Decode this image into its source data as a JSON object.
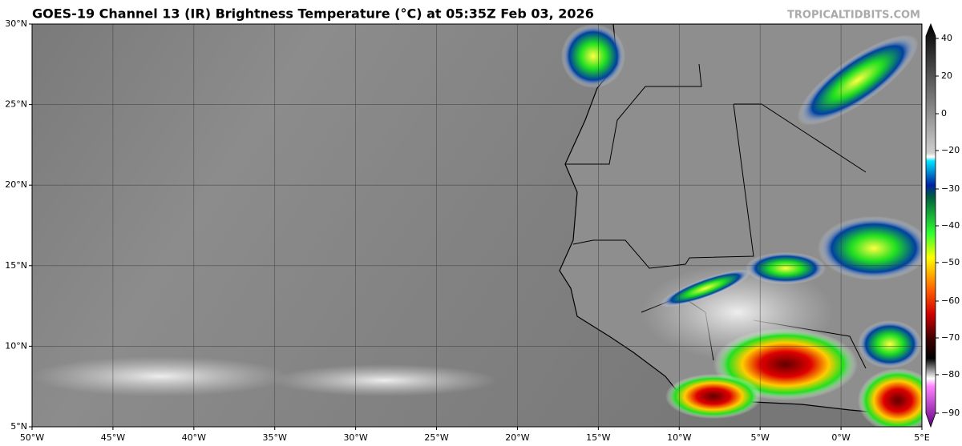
{
  "header": {
    "title": "GOES-19 Channel 13 (IR) Brightness Temperature (°C) at 05:35Z Feb 03, 2026",
    "watermark": "TROPICALTIDBITS.COM"
  },
  "map": {
    "lat_labels": [
      "30°N",
      "25°N",
      "20°N",
      "15°N",
      "10°N",
      "5°N"
    ],
    "lon_labels": [
      "50°W",
      "45°W",
      "40°W",
      "35°W",
      "30°W",
      "25°W",
      "20°W",
      "15°W",
      "10°W",
      "5°W",
      "0°W",
      "5°E"
    ]
  },
  "colorbar": {
    "labels": [
      "40",
      "20",
      "0",
      "−20",
      "−30",
      "−40",
      "−50",
      "−60",
      "−70",
      "−80",
      "−90"
    ]
  }
}
